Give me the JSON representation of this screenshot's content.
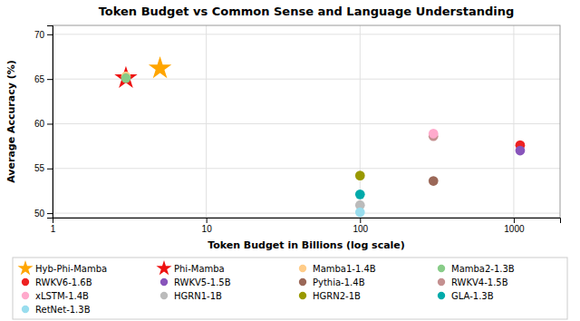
{
  "chart_data": {
    "type": "scatter",
    "title": "Token Budget vs Common Sense and Language Understanding",
    "x_label": "Token Budget in Billions (log scale)",
    "y_label": "Average Accuracy (%)",
    "log": "x",
    "grid": true,
    "legend": "bottom",
    "xlim": [
      1,
      2000
    ],
    "xticks": [
      1,
      10,
      100,
      1000
    ],
    "ylim": [
      49.5,
      71
    ],
    "yticks": [
      50,
      55,
      60,
      65,
      70
    ],
    "series": [
      {
        "name": "Hyb-Phi-Mamba",
        "color": "#FFA500",
        "marker": "star",
        "x": [
          5.0
        ],
        "values": [
          66.2
        ]
      },
      {
        "name": "Phi-Mamba",
        "color": "#EE1111",
        "marker": "star",
        "x": [
          3.0
        ],
        "values": [
          65.1
        ]
      },
      {
        "name": "Mamba1-1.4B",
        "color": "#FFCC88",
        "marker": "circle",
        "x": [
          3.0
        ],
        "values": [
          65.3
        ]
      },
      {
        "name": "Mamba2-1.3B",
        "color": "#88CC88",
        "marker": "circle",
        "x": [
          3.0
        ],
        "values": [
          65.1
        ]
      },
      {
        "name": "RWKV6-1.6B",
        "color": "#EE2222",
        "marker": "circle",
        "x": [
          1100
        ],
        "values": [
          57.6
        ]
      },
      {
        "name": "RWKV5-1.5B",
        "color": "#8855BB",
        "marker": "circle",
        "x": [
          1100
        ],
        "values": [
          57.0
        ]
      },
      {
        "name": "Pythia-1.4B",
        "color": "#9B6858",
        "marker": "circle",
        "x": [
          300
        ],
        "values": [
          53.6
        ]
      },
      {
        "name": "RWKV4-1.5B",
        "color": "#C49090",
        "marker": "circle",
        "x": [
          300
        ],
        "values": [
          58.6
        ]
      },
      {
        "name": "xLSTM-1.4B",
        "color": "#FFAACC",
        "marker": "circle",
        "x": [
          300
        ],
        "values": [
          58.9
        ]
      },
      {
        "name": "HGRN1-1B",
        "color": "#BBBBBB",
        "marker": "circle",
        "x": [
          100
        ],
        "values": [
          50.9
        ]
      },
      {
        "name": "HGRN2-1B",
        "color": "#999900",
        "marker": "circle",
        "x": [
          100
        ],
        "values": [
          54.2
        ]
      },
      {
        "name": "GLA-1.3B",
        "color": "#00AAAA",
        "marker": "circle",
        "x": [
          100
        ],
        "values": [
          52.1
        ]
      },
      {
        "name": "RetNet-1.3B",
        "color": "#99DDEE",
        "marker": "circle",
        "x": [
          100
        ],
        "values": [
          50.1
        ]
      }
    ]
  }
}
